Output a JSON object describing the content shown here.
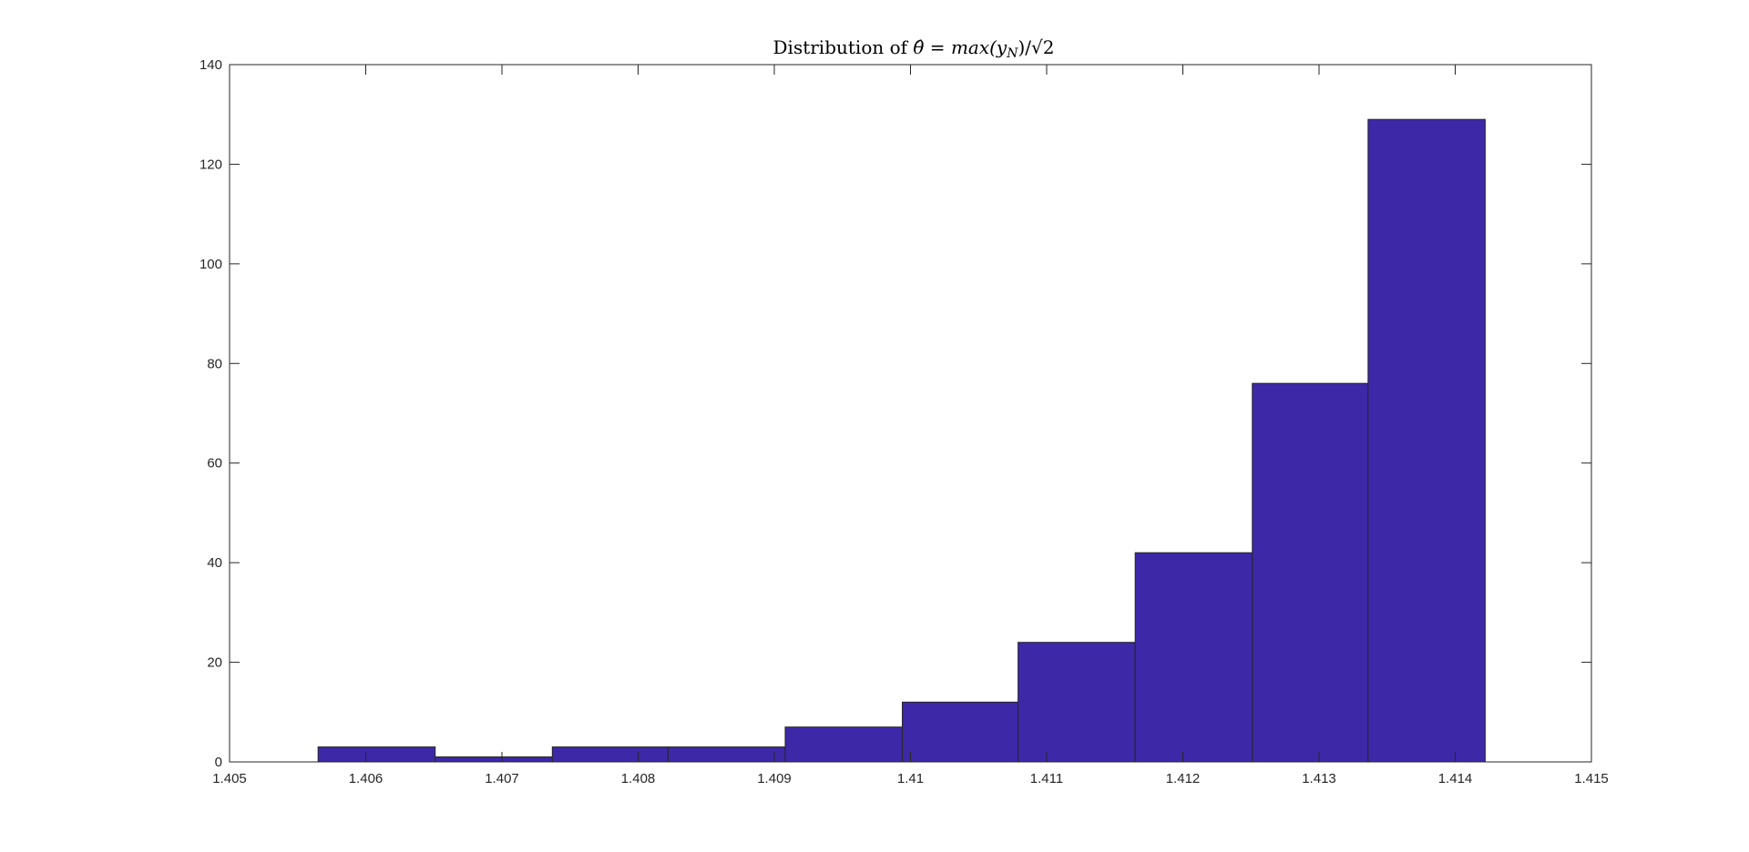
{
  "chart_data": {
    "type": "bar",
    "title": {
      "prefix": "Distribution of ",
      "theta_hat": "θ̂",
      "equals": " = ",
      "max_fn": "max(y",
      "subscript": "N",
      "close": ")/√2"
    },
    "xlabel": "",
    "ylabel": "",
    "xlim": [
      1.405,
      1.415
    ],
    "ylim": [
      0,
      140
    ],
    "xticks": [
      "1.405",
      "1.406",
      "1.407",
      "1.408",
      "1.409",
      "1.41",
      "1.411",
      "1.412",
      "1.413",
      "1.414",
      "1.415"
    ],
    "yticks": [
      "0",
      "20",
      "40",
      "60",
      "80",
      "100",
      "120",
      "140"
    ],
    "bins": [
      {
        "x0": 1.40565,
        "x1": 1.40651,
        "count": 3
      },
      {
        "x0": 1.40651,
        "x1": 1.40737,
        "count": 1
      },
      {
        "x0": 1.40737,
        "x1": 1.40822,
        "count": 3
      },
      {
        "x0": 1.40822,
        "x1": 1.40908,
        "count": 3
      },
      {
        "x0": 1.40908,
        "x1": 1.40994,
        "count": 7
      },
      {
        "x0": 1.40994,
        "x1": 1.41079,
        "count": 12
      },
      {
        "x0": 1.41079,
        "x1": 1.41165,
        "count": 24
      },
      {
        "x0": 1.41165,
        "x1": 1.41251,
        "count": 42
      },
      {
        "x0": 1.41251,
        "x1": 1.41336,
        "count": 76
      },
      {
        "x0": 1.41336,
        "x1": 1.41422,
        "count": 129
      }
    ],
    "bar_color": "#3d28a8",
    "edge_color": "#262626",
    "grid": false,
    "legend": false
  }
}
